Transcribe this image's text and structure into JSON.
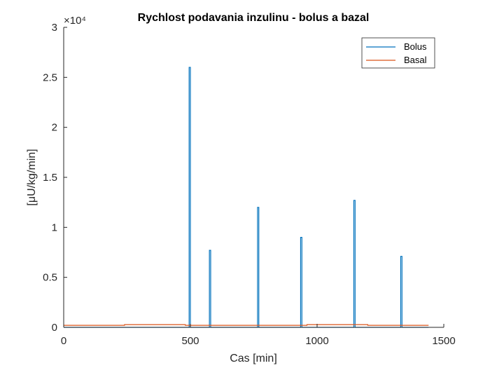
{
  "chart_data": {
    "type": "line",
    "title": "Rychlost podavania inzulinu - bolus a bazal",
    "xlabel": "Cas [min]",
    "ylabel": "[μU/kg/min]",
    "y_exponent_label": "×10⁴",
    "xlim": [
      0,
      1500
    ],
    "ylim": [
      0,
      30000
    ],
    "xticks": [
      0,
      500,
      1000,
      1500
    ],
    "yticks": [
      0,
      5000,
      10000,
      15000,
      20000,
      25000,
      30000
    ],
    "yticklabels": [
      "0",
      "0.5",
      "1",
      "1.5",
      "2",
      "2.5",
      "3"
    ],
    "grid": false,
    "legend_position": "top-right",
    "series": [
      {
        "name": "Bolus",
        "color": "#0072BD",
        "x": [
          0,
          495,
          495,
          500,
          500,
          575,
          575,
          580,
          580,
          765,
          765,
          770,
          770,
          935,
          935,
          940,
          940,
          1145,
          1145,
          1150,
          1150,
          1330,
          1330,
          1335,
          1335,
          1440
        ],
        "y": [
          0,
          0,
          26000,
          26000,
          0,
          0,
          7700,
          7700,
          0,
          0,
          12000,
          12000,
          0,
          0,
          9000,
          9000,
          0,
          0,
          12700,
          12700,
          0,
          0,
          7100,
          7100,
          0,
          0
        ]
      },
      {
        "name": "Basal",
        "color": "#D95319",
        "x": [
          0,
          240,
          240,
          480,
          480,
          960,
          960,
          1200,
          1200,
          1440
        ],
        "y": [
          200,
          200,
          270,
          270,
          200,
          200,
          270,
          270,
          200,
          200
        ]
      }
    ]
  }
}
